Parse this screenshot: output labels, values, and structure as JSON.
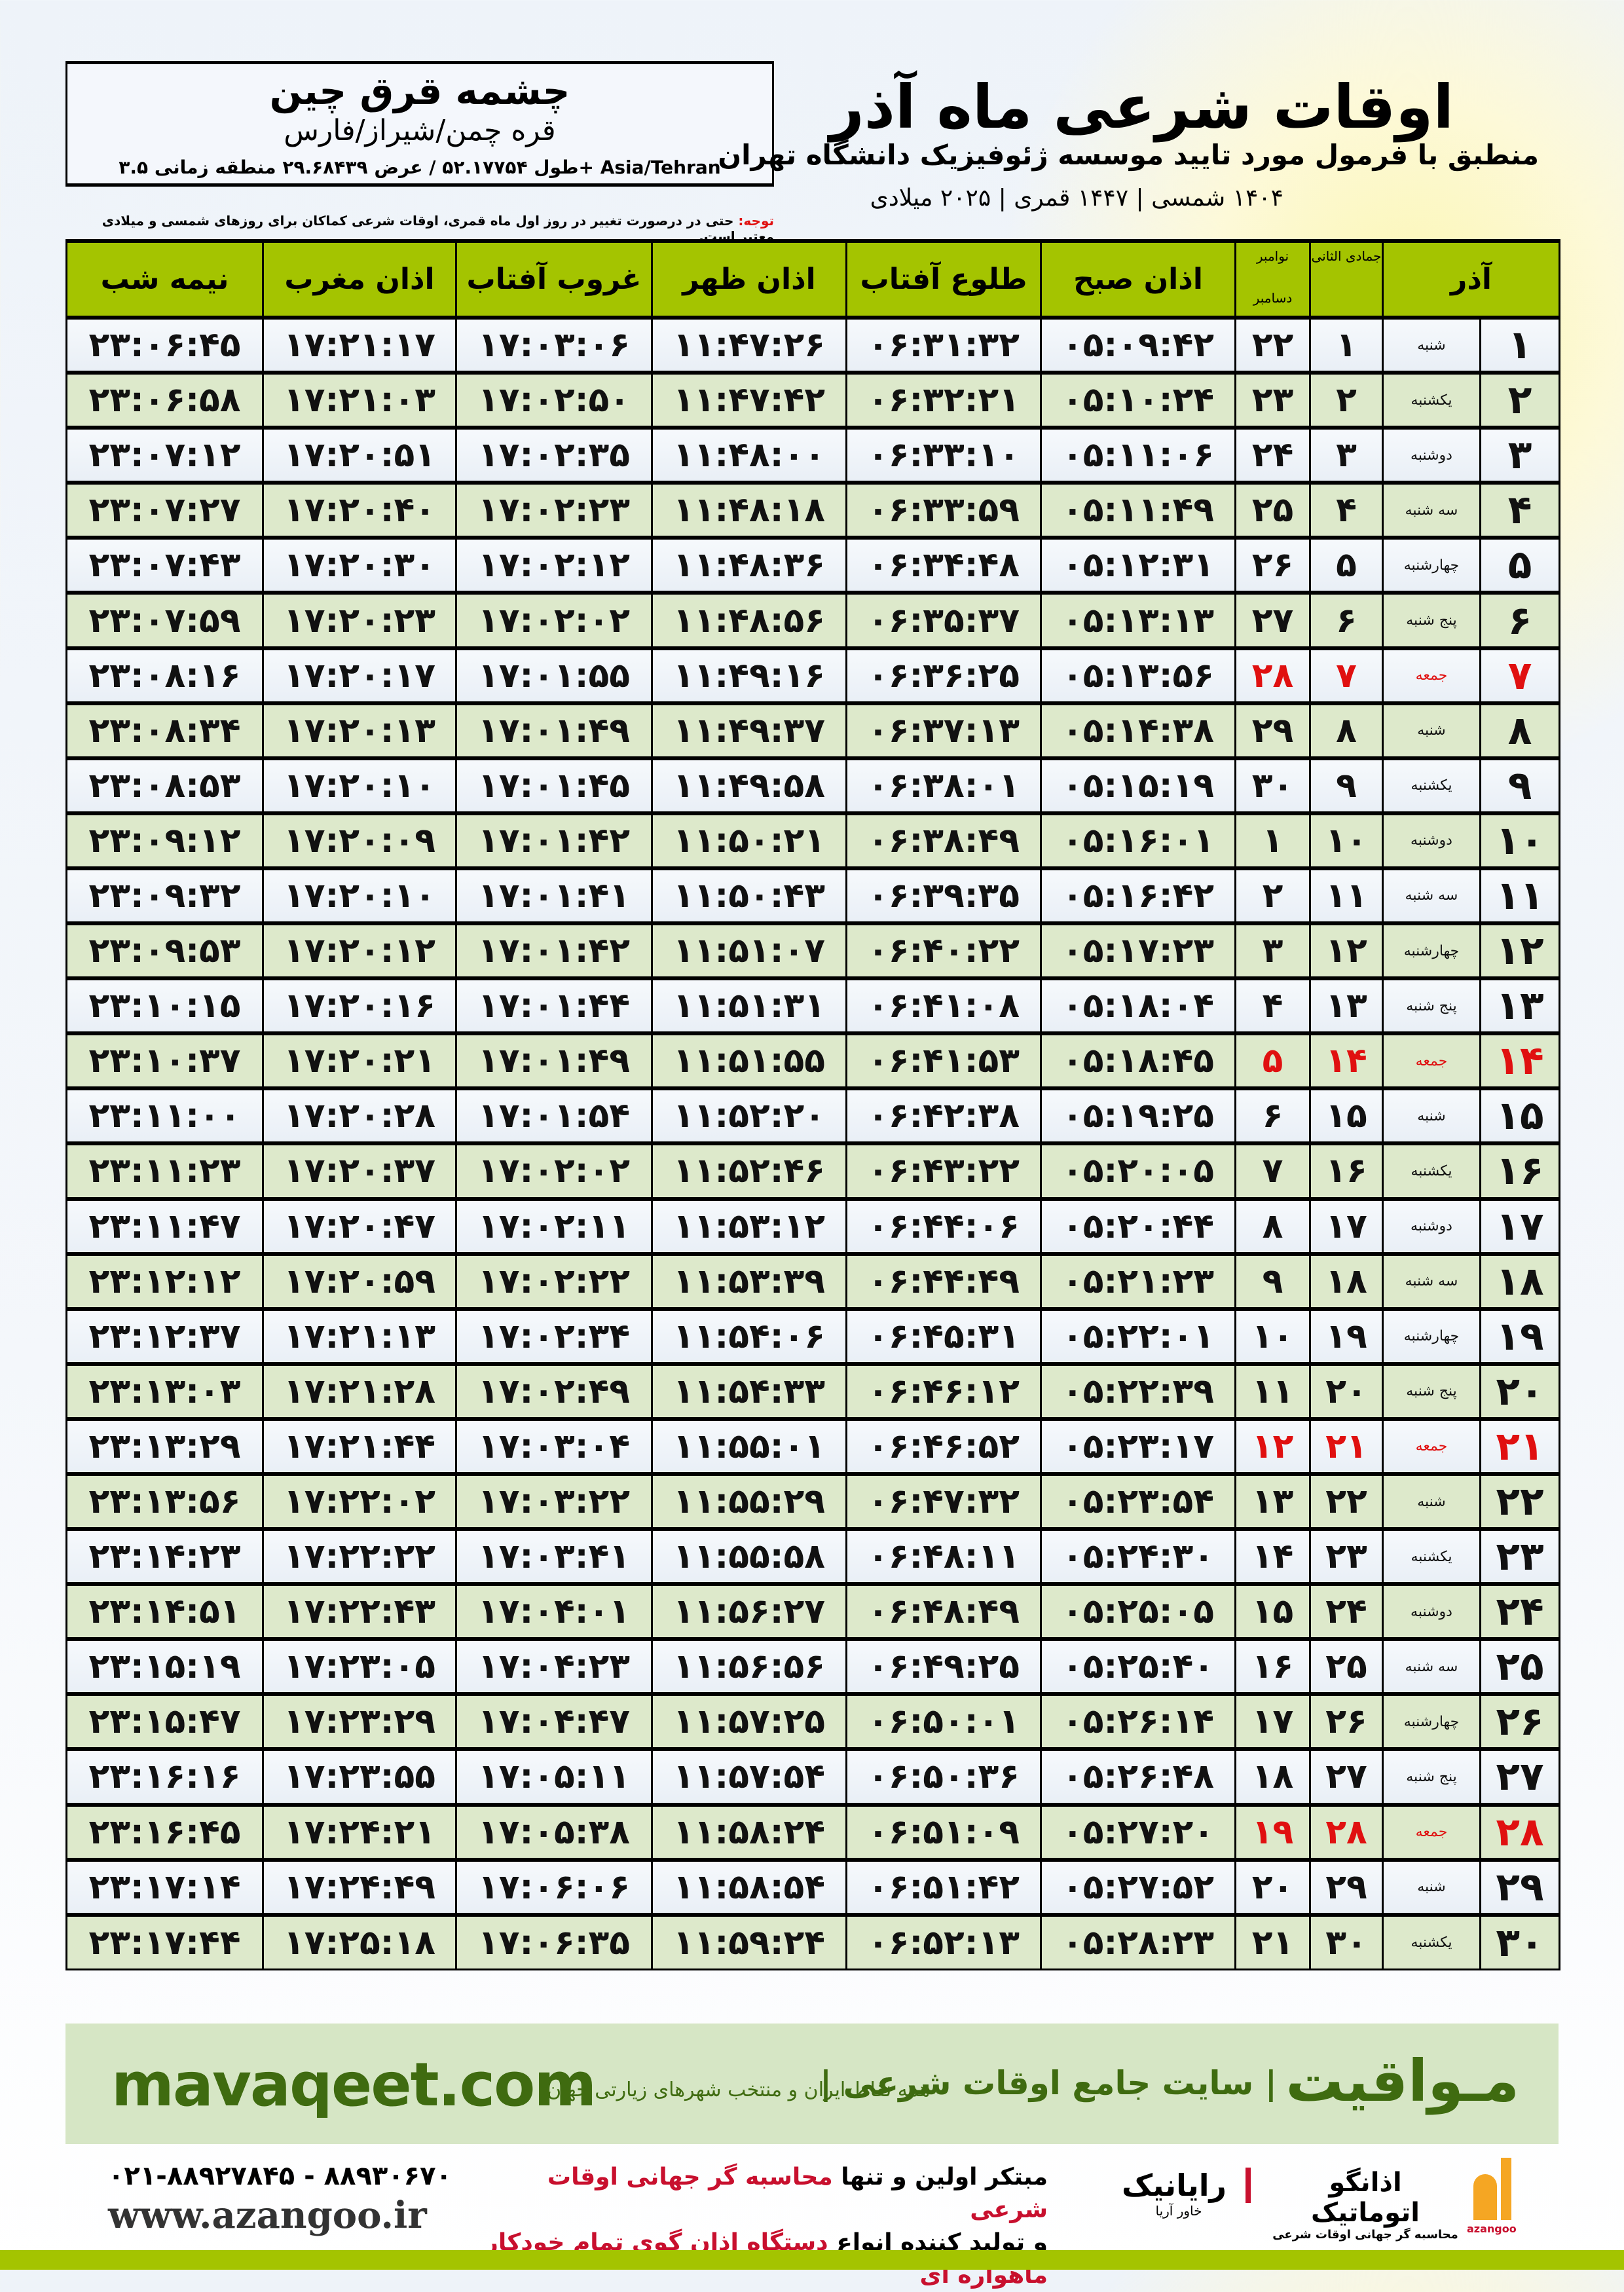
{
  "location": {
    "city": "چشمه قرق چین",
    "province": "قره چمن/شیراز/فارس",
    "coords": "طول ۵۲.۱۷۷۵۴ / عرض ۲۹.۶۸۴۳۹ منطقه زمانی ۳.۵+ Asia/Tehran"
  },
  "header": {
    "title": "اوقات شرعی ماه آذر",
    "subtitle": "منطبق با فرمول مورد تایید موسسه ژئوفیزیک دانشگاه تهران",
    "dates": "۱۴۰۴ شمسی | ۱۴۴۷ قمری | ۲۰۲۵ میلادی"
  },
  "note": {
    "label": "توجه:",
    "text": " حتی در درصورت تغییر در روز اول ماه قمری، اوقات شرعی کماکان برای روزهای شمسی و میلادی معتبر است."
  },
  "columns": {
    "azar": "آذر",
    "qamari": "جمادی الثانی",
    "nov": "نوامبر",
    "dec": "دسامبر",
    "fajr": "اذان صبح",
    "sunrise": "طلوع آفتاب",
    "dhuhr": "اذان ظهر",
    "sunset": "غروب آفتاب",
    "maghrib": "اذان مغرب",
    "midnight": "نیمه شب"
  },
  "colors": {
    "header_green": "#a4c400",
    "friday_red": "#e01010",
    "brand_green": "#3f6b10"
  },
  "rows": [
    [
      "۱",
      "شنبه",
      "۱",
      "۲۲",
      "۰۵:۰۹:۴۲",
      "۰۶:۳۱:۳۲",
      "۱۱:۴۷:۲۶",
      "۱۷:۰۳:۰۶",
      "۱۷:۲۱:۱۷",
      "۲۳:۰۶:۴۵"
    ],
    [
      "۲",
      "یکشنبه",
      "۲",
      "۲۳",
      "۰۵:۱۰:۲۴",
      "۰۶:۳۲:۲۱",
      "۱۱:۴۷:۴۲",
      "۱۷:۰۲:۵۰",
      "۱۷:۲۱:۰۳",
      "۲۳:۰۶:۵۸"
    ],
    [
      "۳",
      "دوشنبه",
      "۳",
      "۲۴",
      "۰۵:۱۱:۰۶",
      "۰۶:۳۳:۱۰",
      "۱۱:۴۸:۰۰",
      "۱۷:۰۲:۳۵",
      "۱۷:۲۰:۵۱",
      "۲۳:۰۷:۱۲"
    ],
    [
      "۴",
      "سه شنبه",
      "۴",
      "۲۵",
      "۰۵:۱۱:۴۹",
      "۰۶:۳۳:۵۹",
      "۱۱:۴۸:۱۸",
      "۱۷:۰۲:۲۳",
      "۱۷:۲۰:۴۰",
      "۲۳:۰۷:۲۷"
    ],
    [
      "۵",
      "چهارشنبه",
      "۵",
      "۲۶",
      "۰۵:۱۲:۳۱",
      "۰۶:۳۴:۴۸",
      "۱۱:۴۸:۳۶",
      "۱۷:۰۲:۱۲",
      "۱۷:۲۰:۳۰",
      "۲۳:۰۷:۴۳"
    ],
    [
      "۶",
      "پنج شنبه",
      "۶",
      "۲۷",
      "۰۵:۱۳:۱۳",
      "۰۶:۳۵:۳۷",
      "۱۱:۴۸:۵۶",
      "۱۷:۰۲:۰۲",
      "۱۷:۲۰:۲۳",
      "۲۳:۰۷:۵۹"
    ],
    [
      "۷",
      "جمعه",
      "۷",
      "۲۸",
      "۰۵:۱۳:۵۶",
      "۰۶:۳۶:۲۵",
      "۱۱:۴۹:۱۶",
      "۱۷:۰۱:۵۵",
      "۱۷:۲۰:۱۷",
      "۲۳:۰۸:۱۶"
    ],
    [
      "۸",
      "شنبه",
      "۸",
      "۲۹",
      "۰۵:۱۴:۳۸",
      "۰۶:۳۷:۱۳",
      "۱۱:۴۹:۳۷",
      "۱۷:۰۱:۴۹",
      "۱۷:۲۰:۱۳",
      "۲۳:۰۸:۳۴"
    ],
    [
      "۹",
      "یکشنبه",
      "۹",
      "۳۰",
      "۰۵:۱۵:۱۹",
      "۰۶:۳۸:۰۱",
      "۱۱:۴۹:۵۸",
      "۱۷:۰۱:۴۵",
      "۱۷:۲۰:۱۰",
      "۲۳:۰۸:۵۳"
    ],
    [
      "۱۰",
      "دوشنبه",
      "۱۰",
      "۱",
      "۰۵:۱۶:۰۱",
      "۰۶:۳۸:۴۹",
      "۱۱:۵۰:۲۱",
      "۱۷:۰۱:۴۲",
      "۱۷:۲۰:۰۹",
      "۲۳:۰۹:۱۲"
    ],
    [
      "۱۱",
      "سه شنبه",
      "۱۱",
      "۲",
      "۰۵:۱۶:۴۲",
      "۰۶:۳۹:۳۵",
      "۱۱:۵۰:۴۳",
      "۱۷:۰۱:۴۱",
      "۱۷:۲۰:۱۰",
      "۲۳:۰۹:۳۲"
    ],
    [
      "۱۲",
      "چهارشنبه",
      "۱۲",
      "۳",
      "۰۵:۱۷:۲۳",
      "۰۶:۴۰:۲۲",
      "۱۱:۵۱:۰۷",
      "۱۷:۰۱:۴۲",
      "۱۷:۲۰:۱۲",
      "۲۳:۰۹:۵۳"
    ],
    [
      "۱۳",
      "پنج شنبه",
      "۱۳",
      "۴",
      "۰۵:۱۸:۰۴",
      "۰۶:۴۱:۰۸",
      "۱۱:۵۱:۳۱",
      "۱۷:۰۱:۴۴",
      "۱۷:۲۰:۱۶",
      "۲۳:۱۰:۱۵"
    ],
    [
      "۱۴",
      "جمعه",
      "۱۴",
      "۵",
      "۰۵:۱۸:۴۵",
      "۰۶:۴۱:۵۳",
      "۱۱:۵۱:۵۵",
      "۱۷:۰۱:۴۹",
      "۱۷:۲۰:۲۱",
      "۲۳:۱۰:۳۷"
    ],
    [
      "۱۵",
      "شنبه",
      "۱۵",
      "۶",
      "۰۵:۱۹:۲۵",
      "۰۶:۴۲:۳۸",
      "۱۱:۵۲:۲۰",
      "۱۷:۰۱:۵۴",
      "۱۷:۲۰:۲۸",
      "۲۳:۱۱:۰۰"
    ],
    [
      "۱۶",
      "یکشنبه",
      "۱۶",
      "۷",
      "۰۵:۲۰:۰۵",
      "۰۶:۴۳:۲۲",
      "۱۱:۵۲:۴۶",
      "۱۷:۰۲:۰۲",
      "۱۷:۲۰:۳۷",
      "۲۳:۱۱:۲۳"
    ],
    [
      "۱۷",
      "دوشنبه",
      "۱۷",
      "۸",
      "۰۵:۲۰:۴۴",
      "۰۶:۴۴:۰۶",
      "۱۱:۵۳:۱۲",
      "۱۷:۰۲:۱۱",
      "۱۷:۲۰:۴۷",
      "۲۳:۱۱:۴۷"
    ],
    [
      "۱۸",
      "سه شنبه",
      "۱۸",
      "۹",
      "۰۵:۲۱:۲۳",
      "۰۶:۴۴:۴۹",
      "۱۱:۵۳:۳۹",
      "۱۷:۰۲:۲۲",
      "۱۷:۲۰:۵۹",
      "۲۳:۱۲:۱۲"
    ],
    [
      "۱۹",
      "چهارشنبه",
      "۱۹",
      "۱۰",
      "۰۵:۲۲:۰۱",
      "۰۶:۴۵:۳۱",
      "۱۱:۵۴:۰۶",
      "۱۷:۰۲:۳۴",
      "۱۷:۲۱:۱۳",
      "۲۳:۱۲:۳۷"
    ],
    [
      "۲۰",
      "پنج شنبه",
      "۲۰",
      "۱۱",
      "۰۵:۲۲:۳۹",
      "۰۶:۴۶:۱۲",
      "۱۱:۵۴:۳۳",
      "۱۷:۰۲:۴۹",
      "۱۷:۲۱:۲۸",
      "۲۳:۱۳:۰۳"
    ],
    [
      "۲۱",
      "جمعه",
      "۲۱",
      "۱۲",
      "۰۵:۲۳:۱۷",
      "۰۶:۴۶:۵۲",
      "۱۱:۵۵:۰۱",
      "۱۷:۰۳:۰۴",
      "۱۷:۲۱:۴۴",
      "۲۳:۱۳:۲۹"
    ],
    [
      "۲۲",
      "شنبه",
      "۲۲",
      "۱۳",
      "۰۵:۲۳:۵۴",
      "۰۶:۴۷:۳۲",
      "۱۱:۵۵:۲۹",
      "۱۷:۰۳:۲۲",
      "۱۷:۲۲:۰۲",
      "۲۳:۱۳:۵۶"
    ],
    [
      "۲۳",
      "یکشنبه",
      "۲۳",
      "۱۴",
      "۰۵:۲۴:۳۰",
      "۰۶:۴۸:۱۱",
      "۱۱:۵۵:۵۸",
      "۱۷:۰۳:۴۱",
      "۱۷:۲۲:۲۲",
      "۲۳:۱۴:۲۳"
    ],
    [
      "۲۴",
      "دوشنبه",
      "۲۴",
      "۱۵",
      "۰۵:۲۵:۰۵",
      "۰۶:۴۸:۴۹",
      "۱۱:۵۶:۲۷",
      "۱۷:۰۴:۰۱",
      "۱۷:۲۲:۴۳",
      "۲۳:۱۴:۵۱"
    ],
    [
      "۲۵",
      "سه شنبه",
      "۲۵",
      "۱۶",
      "۰۵:۲۵:۴۰",
      "۰۶:۴۹:۲۵",
      "۱۱:۵۶:۵۶",
      "۱۷:۰۴:۲۳",
      "۱۷:۲۳:۰۵",
      "۲۳:۱۵:۱۹"
    ],
    [
      "۲۶",
      "چهارشنبه",
      "۲۶",
      "۱۷",
      "۰۵:۲۶:۱۴",
      "۰۶:۵۰:۰۱",
      "۱۱:۵۷:۲۵",
      "۱۷:۰۴:۴۷",
      "۱۷:۲۳:۲۹",
      "۲۳:۱۵:۴۷"
    ],
    [
      "۲۷",
      "پنج شنبه",
      "۲۷",
      "۱۸",
      "۰۵:۲۶:۴۸",
      "۰۶:۵۰:۳۶",
      "۱۱:۵۷:۵۴",
      "۱۷:۰۵:۱۱",
      "۱۷:۲۳:۵۵",
      "۲۳:۱۶:۱۶"
    ],
    [
      "۲۸",
      "جمعه",
      "۲۸",
      "۱۹",
      "۰۵:۲۷:۲۰",
      "۰۶:۵۱:۰۹",
      "۱۱:۵۸:۲۴",
      "۱۷:۰۵:۳۸",
      "۱۷:۲۴:۲۱",
      "۲۳:۱۶:۴۵"
    ],
    [
      "۲۹",
      "شنبه",
      "۲۹",
      "۲۰",
      "۰۵:۲۷:۵۲",
      "۰۶:۵۱:۴۲",
      "۱۱:۵۸:۵۴",
      "۱۷:۰۶:۰۶",
      "۱۷:۲۴:۴۹",
      "۲۳:۱۷:۱۴"
    ],
    [
      "۳۰",
      "یکشنبه",
      "۳۰",
      "۲۱",
      "۰۵:۲۸:۲۳",
      "۰۶:۵۲:۱۳",
      "۱۱:۵۹:۲۴",
      "۱۷:۰۶:۳۵",
      "۱۷:۲۵:۱۸",
      "۲۳:۱۷:۴۴"
    ]
  ],
  "banner": {
    "brand": "مـواقیت",
    "tagline": "| سایت جامع اوقات شرعی |",
    "sub": "همه نقاط ایران و منتخب شهرهای زیارتی جهان",
    "site": "mavaqeet.com"
  },
  "footer": {
    "phone": "۰۲۱-۸۸۹۲۷۸۴۵ - ۸۸۹۳۰۶۷۰",
    "web": "www.azangoo.ir",
    "promo1a": "مبتکر اولین و تنها ",
    "promo1b": "محاسبه گر جهانی اوقات شرعی",
    "promo2a": "و تولید کننده انواع ",
    "promo2b": "دستگاه اذان گوی تمام خودکار ماهواره ای",
    "logo1": "رایانیک",
    "logo1_sub": "خاور آریا",
    "logo2": "اذانگو اتوماتیک",
    "logo2_sub": "محاسبه گر جهانی اوقات شرعی",
    "logo2_en": "azangoo"
  }
}
